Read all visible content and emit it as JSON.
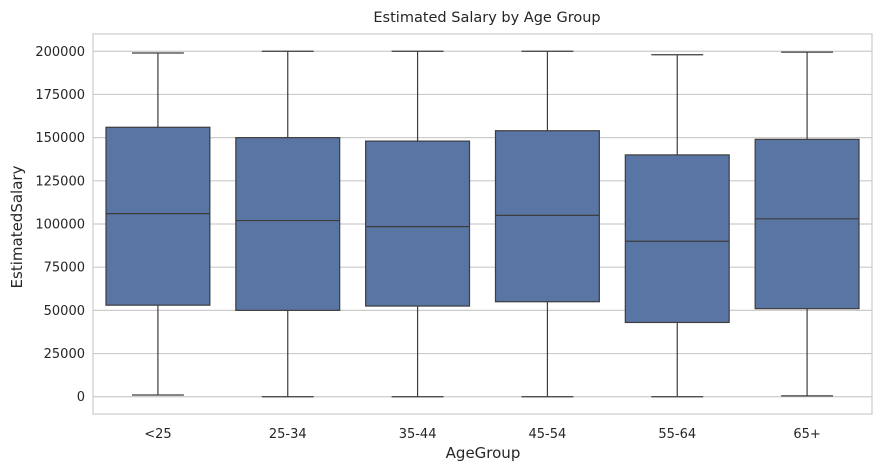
{
  "chart_data": {
    "type": "box",
    "title": "Estimated Salary by Age Group",
    "xlabel": "AgeGroup",
    "ylabel": "EstimatedSalary",
    "ylim": [
      -10000,
      210000
    ],
    "yticks": [
      0,
      25000,
      50000,
      75000,
      100000,
      125000,
      150000,
      175000,
      200000
    ],
    "grid": true,
    "box_color": "#5875a4",
    "line_color": "#3d3d3d",
    "grid_color": "#cccccc",
    "categories": [
      "<25",
      "25-34",
      "35-44",
      "45-54",
      "55-64",
      "65+"
    ],
    "boxes": [
      {
        "whislo": 1000,
        "q1": 53000,
        "med": 106000,
        "q3": 156000,
        "whishi": 199000
      },
      {
        "whislo": 0,
        "q1": 50000,
        "med": 102000,
        "q3": 150000,
        "whishi": 200000
      },
      {
        "whislo": 0,
        "q1": 52500,
        "med": 98500,
        "q3": 148000,
        "whishi": 200000
      },
      {
        "whislo": 0,
        "q1": 55000,
        "med": 105000,
        "q3": 154000,
        "whishi": 200000
      },
      {
        "whislo": 0,
        "q1": 43000,
        "med": 90000,
        "q3": 140000,
        "whishi": 198000
      },
      {
        "whislo": 500,
        "q1": 51000,
        "med": 103000,
        "q3": 149000,
        "whishi": 199500
      }
    ]
  }
}
